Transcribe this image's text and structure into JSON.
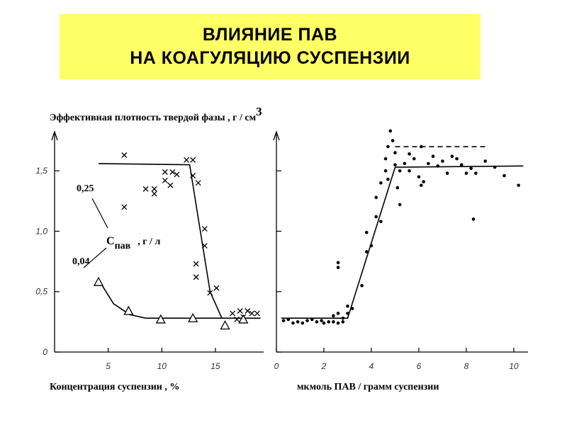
{
  "title": {
    "line1": "ВЛИЯНИЕ ПАВ",
    "line2": "НА КОАГУЛЯЦИЮ СУСПЕНЗИИ"
  },
  "ylabel": {
    "text": "Эффективная плотность твердой фазы  ,  г / см",
    "sup": "3"
  },
  "chart_data": [
    {
      "type": "scatter",
      "xlabel": "Концентрация суспензии , %",
      "xlim": [
        0,
        19.5
      ],
      "ylim": [
        0,
        1.8
      ],
      "xticks": [
        {
          "v": 5,
          "t": "5"
        },
        {
          "v": 10,
          "t": "10"
        },
        {
          "v": 15,
          "t": "15"
        }
      ],
      "yticks": [
        {
          "v": 0,
          "t": "0"
        },
        {
          "v": 0.5,
          "t": "0,5"
        },
        {
          "v": 1.0,
          "t": "1,0"
        },
        {
          "v": 1.5,
          "t": "1,5"
        }
      ],
      "annotations": {
        "c_top": "0,25",
        "c_bottom": "0,04",
        "c_label": "С",
        "c_sub": "пав",
        "c_unit": ", г / л"
      },
      "series": [
        {
          "marker": "x",
          "points": [
            [
              6.5,
              1.63
            ],
            [
              6.5,
              1.2
            ],
            [
              8.5,
              1.35
            ],
            [
              9.3,
              1.31
            ],
            [
              9.3,
              1.35
            ],
            [
              10.3,
              1.49
            ],
            [
              10.3,
              1.42
            ],
            [
              10.8,
              1.38
            ],
            [
              11.0,
              1.49
            ],
            [
              11.4,
              1.47
            ],
            [
              12.3,
              1.59
            ],
            [
              12.9,
              1.59
            ],
            [
              12.9,
              1.46
            ],
            [
              13.4,
              1.4
            ],
            [
              14.0,
              1.02
            ],
            [
              14.0,
              0.88
            ],
            [
              13.2,
              0.73
            ],
            [
              13.2,
              0.62
            ],
            [
              14.5,
              0.49
            ],
            [
              15.1,
              0.53
            ],
            [
              16.6,
              0.32
            ],
            [
              17.0,
              0.27
            ],
            [
              17.3,
              0.34
            ],
            [
              17.6,
              0.29
            ],
            [
              18.0,
              0.34
            ],
            [
              18.4,
              0.32
            ],
            [
              18.9,
              0.32
            ]
          ],
          "fit": [
            [
              4.1,
              1.56
            ],
            [
              12.6,
              1.55
            ],
            [
              14.5,
              0.5
            ],
            [
              15.6,
              0.28
            ]
          ]
        },
        {
          "marker": "triangle",
          "points": [
            [
              4.1,
              0.58
            ],
            [
              6.9,
              0.34
            ],
            [
              9.9,
              0.27
            ],
            [
              12.9,
              0.28
            ],
            [
              15.9,
              0.22
            ],
            [
              17.6,
              0.27
            ]
          ],
          "fit": [
            [
              4.1,
              0.6
            ],
            [
              5.5,
              0.4
            ],
            [
              7.0,
              0.31
            ],
            [
              8.5,
              0.28
            ],
            [
              19.2,
              0.28
            ]
          ]
        }
      ]
    },
    {
      "type": "scatter",
      "xlabel": "мкмоль ПАВ / грамм суспензии",
      "xlim": [
        0,
        10.6
      ],
      "ylim": [
        0,
        1.8
      ],
      "xticks": [
        {
          "v": 0,
          "t": "0"
        },
        {
          "v": 2,
          "t": "2"
        },
        {
          "v": 4,
          "t": "4"
        },
        {
          "v": 6,
          "t": "6"
        },
        {
          "v": 8,
          "t": "8"
        },
        {
          "v": 10,
          "t": "10"
        }
      ],
      "yticks": [
        {
          "v": 0,
          "t": ""
        },
        {
          "v": 0.5,
          "t": ""
        },
        {
          "v": 1.0,
          "t": ""
        },
        {
          "v": 1.5,
          "t": ""
        }
      ],
      "series": [
        {
          "marker": "dot",
          "points": [
            [
              0.3,
              0.26
            ],
            [
              0.5,
              0.27
            ],
            [
              0.7,
              0.24
            ],
            [
              0.9,
              0.25
            ],
            [
              1.1,
              0.24
            ],
            [
              1.3,
              0.26
            ],
            [
              1.5,
              0.27
            ],
            [
              1.7,
              0.25
            ],
            [
              1.9,
              0.26
            ],
            [
              2.0,
              0.24
            ],
            [
              2.2,
              0.25
            ],
            [
              2.4,
              0.25
            ],
            [
              2.6,
              0.24
            ],
            [
              2.8,
              0.25
            ],
            [
              2.4,
              0.3
            ],
            [
              2.6,
              0.32
            ],
            [
              2.8,
              0.28
            ],
            [
              3.0,
              0.32
            ],
            [
              3.0,
              0.38
            ],
            [
              3.2,
              0.36
            ],
            [
              2.6,
              0.7
            ],
            [
              2.6,
              0.74
            ],
            [
              3.6,
              0.55
            ],
            [
              3.8,
              0.83
            ],
            [
              3.8,
              0.99
            ],
            [
              4.0,
              0.88
            ],
            [
              4.2,
              1.12
            ],
            [
              4.2,
              1.28
            ],
            [
              4.4,
              1.08
            ],
            [
              4.4,
              1.4
            ],
            [
              4.6,
              1.5
            ],
            [
              4.6,
              1.6
            ],
            [
              4.7,
              1.43
            ],
            [
              4.7,
              1.7
            ],
            [
              4.8,
              1.83
            ],
            [
              4.9,
              1.75
            ],
            [
              5.0,
              1.65
            ],
            [
              5.0,
              1.55
            ],
            [
              5.1,
              1.36
            ],
            [
              5.2,
              1.5
            ],
            [
              5.2,
              1.22
            ],
            [
              5.4,
              1.56
            ],
            [
              5.6,
              1.5
            ],
            [
              5.6,
              1.64
            ],
            [
              5.8,
              1.6
            ],
            [
              6.0,
              1.45
            ],
            [
              6.1,
              1.38
            ],
            [
              6.1,
              1.7
            ],
            [
              6.2,
              1.41
            ],
            [
              6.4,
              1.56
            ],
            [
              6.6,
              1.62
            ],
            [
              6.8,
              1.54
            ],
            [
              7.0,
              1.58
            ],
            [
              7.2,
              1.48
            ],
            [
              7.4,
              1.62
            ],
            [
              7.6,
              1.6
            ],
            [
              7.8,
              1.55
            ],
            [
              8.0,
              1.48
            ],
            [
              8.2,
              1.52
            ],
            [
              8.4,
              1.48
            ],
            [
              8.3,
              1.1
            ],
            [
              8.8,
              1.58
            ],
            [
              9.2,
              1.53
            ],
            [
              9.6,
              1.46
            ],
            [
              10.2,
              1.38
            ]
          ],
          "fit": [
            [
              0.2,
              0.28
            ],
            [
              3.0,
              0.28
            ],
            [
              5.0,
              1.53
            ],
            [
              10.4,
              1.54
            ]
          ]
        },
        {
          "marker": "dot",
          "fit": [
            [
              5.0,
              1.7
            ],
            [
              8.9,
              1.7
            ]
          ],
          "dashed": true
        }
      ]
    }
  ]
}
